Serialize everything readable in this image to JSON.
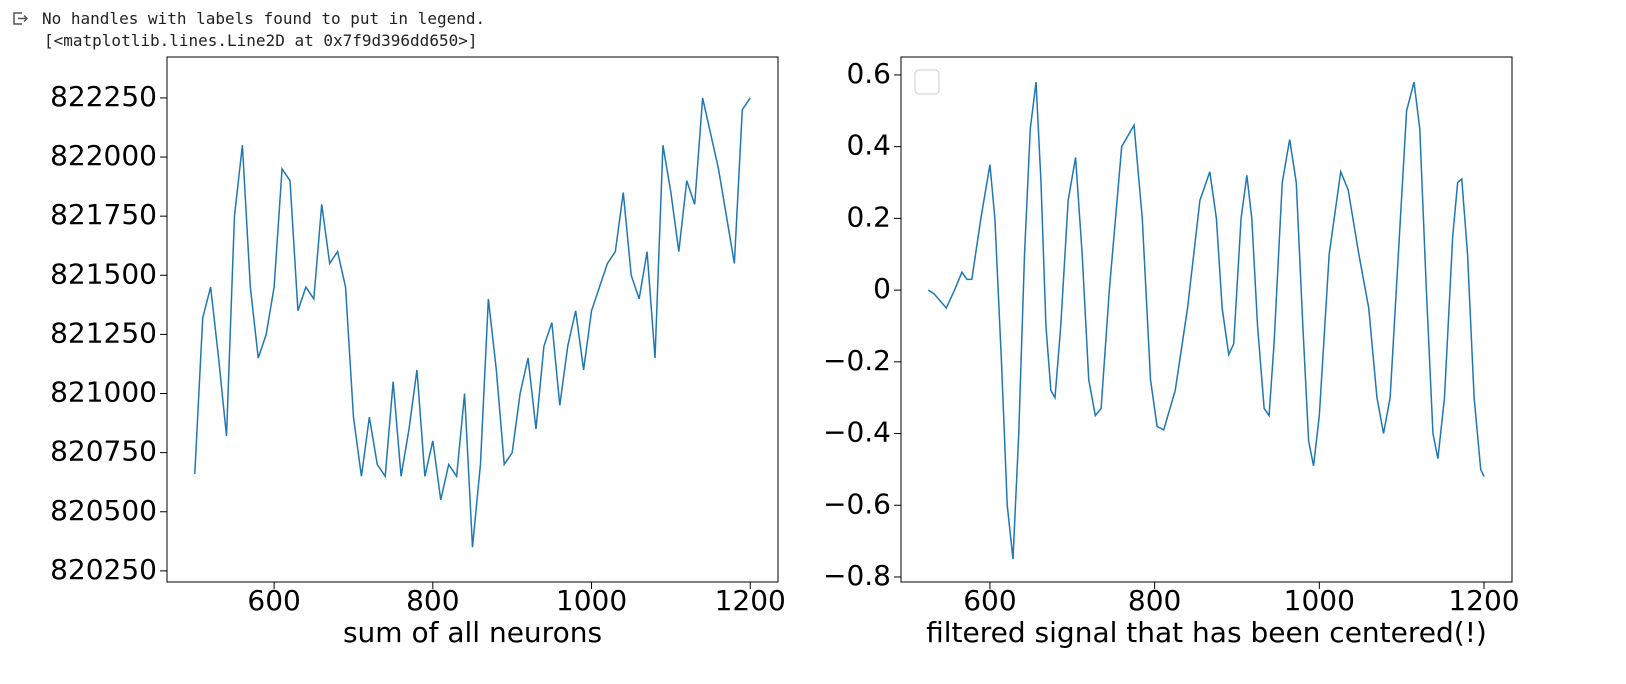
{
  "output_lines": [
    "No handles with labels found to put in legend.",
    "[<matplotlib.lines.Line2D at 0x7f9d396dd650>]"
  ],
  "chart_data": [
    {
      "type": "line",
      "xlabel": "sum of all neurons",
      "color": "#1f77b4",
      "x": [
        500,
        510,
        520,
        530,
        540,
        550,
        560,
        570,
        580,
        590,
        600,
        610,
        620,
        630,
        640,
        650,
        660,
        670,
        680,
        690,
        700,
        710,
        720,
        730,
        740,
        750,
        760,
        770,
        780,
        790,
        800,
        810,
        820,
        830,
        840,
        850,
        860,
        870,
        880,
        890,
        900,
        910,
        920,
        930,
        940,
        950,
        960,
        970,
        980,
        990,
        1000,
        1010,
        1020,
        1030,
        1040,
        1050,
        1060,
        1070,
        1080,
        1090,
        1100,
        1110,
        1120,
        1130,
        1140,
        1150,
        1160,
        1170,
        1180,
        1190,
        1200
      ],
      "values": [
        820660,
        821320,
        821450,
        821150,
        820820,
        821750,
        822050,
        821450,
        821150,
        821250,
        821450,
        821950,
        821900,
        821350,
        821450,
        821400,
        821800,
        821550,
        821600,
        821450,
        820900,
        820650,
        820900,
        820700,
        820650,
        821050,
        820650,
        820850,
        821100,
        820650,
        820800,
        820550,
        820700,
        820650,
        821000,
        820350,
        820700,
        821400,
        821100,
        820700,
        820750,
        821000,
        821150,
        820850,
        821200,
        821300,
        820950,
        821200,
        821350,
        821100,
        821350,
        821450,
        821550,
        821600,
        821850,
        821500,
        821400,
        821600,
        821150,
        822050,
        821850,
        821600,
        821900,
        821800,
        822250,
        822100,
        821950,
        821750,
        821550,
        822200,
        822250
      ],
      "xlim": [
        465,
        1235
      ],
      "ylim": [
        820203,
        822423
      ],
      "xticks": [
        600,
        800,
        1000,
        1200
      ],
      "yticks": [
        820250,
        820500,
        820750,
        821000,
        821250,
        821500,
        821750,
        822000,
        822250
      ]
    },
    {
      "type": "line",
      "xlabel": "filtered signal that has been centered(!)",
      "color": "#1f77b4",
      "legend": "upper left",
      "x": [
        525,
        532,
        547,
        557,
        566,
        572,
        578,
        589,
        600,
        606,
        614,
        621,
        628,
        635,
        642,
        649,
        656,
        662,
        668,
        674,
        679,
        686,
        695,
        704,
        712,
        720,
        728,
        735,
        745,
        760,
        775,
        785,
        795,
        803,
        811,
        825,
        840,
        855,
        867,
        875,
        882,
        890,
        896,
        905,
        912,
        918,
        925,
        933,
        939,
        945,
        955,
        964,
        972,
        980,
        987,
        993,
        1000,
        1012,
        1026,
        1035,
        1048,
        1060,
        1070,
        1078,
        1086,
        1096,
        1106,
        1115,
        1122,
        1130,
        1138,
        1144,
        1152,
        1162,
        1168,
        1173,
        1180,
        1188,
        1196,
        1200
      ],
      "values": [
        0.0,
        -0.01,
        -0.05,
        0.0,
        0.05,
        0.03,
        0.03,
        0.2,
        0.35,
        0.2,
        -0.2,
        -0.6,
        -0.75,
        -0.4,
        0.1,
        0.45,
        0.58,
        0.3,
        -0.1,
        -0.28,
        -0.3,
        -0.1,
        0.25,
        0.37,
        0.1,
        -0.25,
        -0.35,
        -0.33,
        0.0,
        0.4,
        0.46,
        0.2,
        -0.25,
        -0.38,
        -0.39,
        -0.28,
        -0.05,
        0.25,
        0.33,
        0.2,
        -0.05,
        -0.18,
        -0.15,
        0.2,
        0.32,
        0.2,
        -0.1,
        -0.33,
        -0.35,
        -0.15,
        0.3,
        0.42,
        0.3,
        -0.1,
        -0.42,
        -0.49,
        -0.35,
        0.1,
        0.33,
        0.28,
        0.1,
        -0.05,
        -0.3,
        -0.4,
        -0.3,
        0.1,
        0.5,
        0.58,
        0.45,
        0.0,
        -0.4,
        -0.47,
        -0.3,
        0.15,
        0.3,
        0.31,
        0.1,
        -0.3,
        -0.5,
        -0.52
      ],
      "xlim": [
        492,
        1234
      ],
      "ylim": [
        -0.814,
        0.65
      ],
      "xticks": [
        600,
        800,
        1000,
        1200
      ],
      "yticks": [
        {
          "value": -0.8,
          "label": "−0.8"
        },
        {
          "value": -0.6,
          "label": "−0.6"
        },
        {
          "value": -0.4,
          "label": "−0.4"
        },
        {
          "value": -0.2,
          "label": "−0.2"
        },
        0.0,
        0.2,
        0.4,
        0.6
      ]
    }
  ]
}
